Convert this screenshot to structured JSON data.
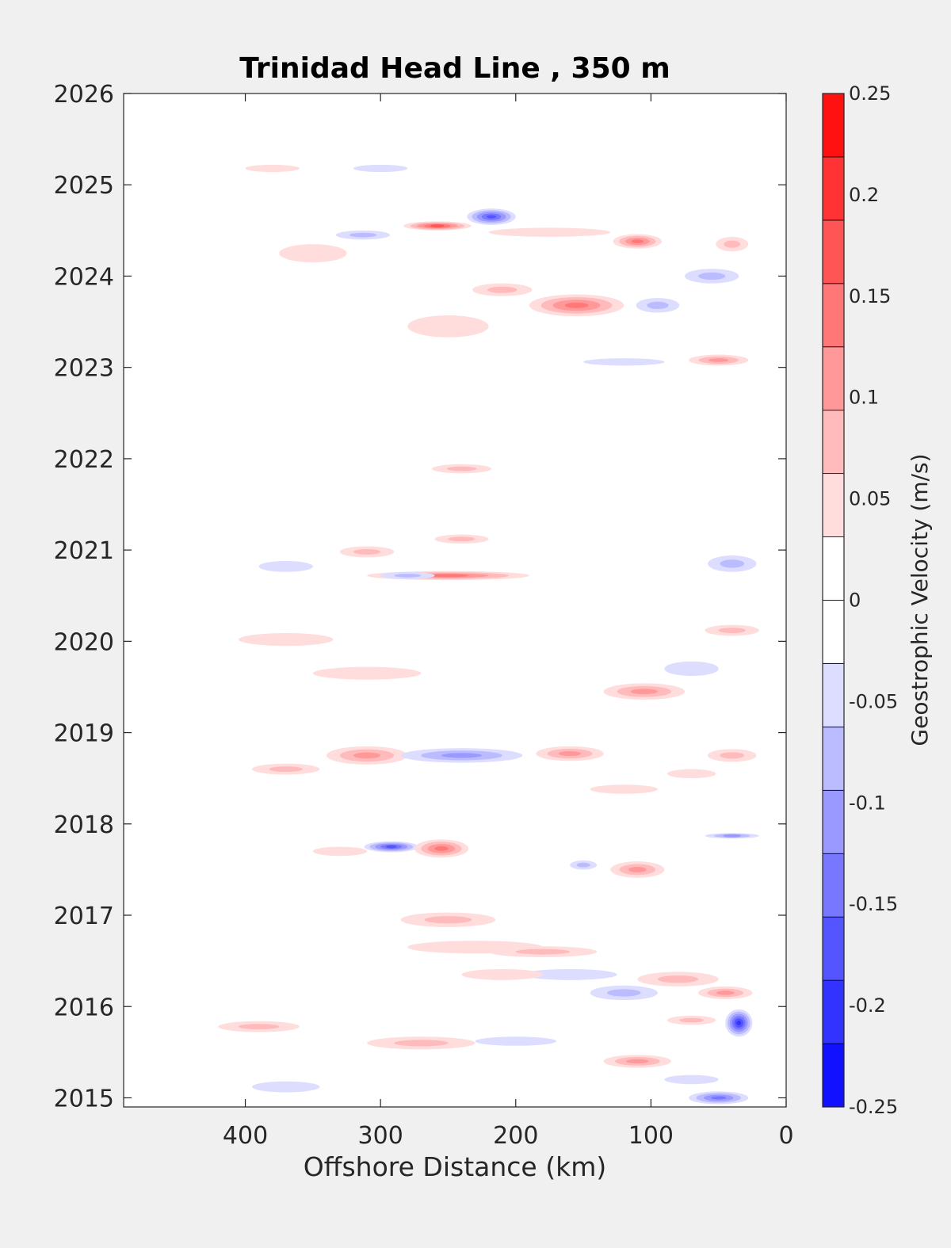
{
  "chart_data": {
    "type": "heatmap",
    "title": "Trinidad Head Line , 350 m",
    "xlabel": "Offshore Distance (km)",
    "ylabel": "",
    "x_reversed": true,
    "xlim": [
      490,
      0
    ],
    "ylim": [
      2014.9,
      2026
    ],
    "xticks": [
      400,
      300,
      200,
      100,
      0
    ],
    "yticks": [
      2015,
      2016,
      2017,
      2018,
      2019,
      2020,
      2021,
      2022,
      2023,
      2024,
      2025,
      2026
    ],
    "grid": false,
    "colorbar": {
      "label": "Geostrophic Velocity (m/s)",
      "range": [
        -0.25,
        0.25
      ],
      "ticks": [
        0.25,
        0.2,
        0.15,
        0.1,
        0.05,
        0,
        -0.05,
        -0.1,
        -0.15,
        -0.2,
        -0.25
      ],
      "tick_labels": [
        "0.25",
        "0.2",
        "0.15",
        "0.1",
        "0.05",
        "0",
        "-0.05",
        "-0.1",
        "-0.15",
        "-0.2",
        "-0.25"
      ],
      "levels": 16,
      "colors": {
        "0.25": "#ff0000",
        "0.219": "#ff2020",
        "0.188": "#ff4040",
        "0.156": "#ff6060",
        "0.125": "#ff8080",
        "0.094": "#ff9f9f",
        "0.063": "#ffbfbf",
        "0.031": "#ffdfdf",
        "0.0": "#ffffff",
        "-0.031": "#dfdfff",
        "-0.063": "#bfbfff",
        "-0.094": "#9f9fff",
        "-0.125": "#8080ff",
        "-0.156": "#6060ff",
        "-0.188": "#4040ff",
        "-0.219": "#2020ff",
        "-0.25": "#0000ff"
      }
    },
    "features": [
      {
        "x": 258,
        "y": 2024.55,
        "rx": 25,
        "ry": 0.05,
        "v": 0.18
      },
      {
        "x": 218,
        "y": 2024.65,
        "rx": 18,
        "ry": 0.09,
        "v": -0.16
      },
      {
        "x": 313,
        "y": 2024.45,
        "rx": 20,
        "ry": 0.05,
        "v": -0.09
      },
      {
        "x": 175,
        "y": 2024.48,
        "rx": 45,
        "ry": 0.05,
        "v": 0.06
      },
      {
        "x": 110,
        "y": 2024.38,
        "rx": 18,
        "ry": 0.08,
        "v": 0.13
      },
      {
        "x": 40,
        "y": 2024.35,
        "rx": 12,
        "ry": 0.08,
        "v": 0.08
      },
      {
        "x": 55,
        "y": 2024.0,
        "rx": 20,
        "ry": 0.08,
        "v": -0.08
      },
      {
        "x": 155,
        "y": 2023.68,
        "rx": 35,
        "ry": 0.12,
        "v": 0.14
      },
      {
        "x": 210,
        "y": 2023.85,
        "rx": 22,
        "ry": 0.07,
        "v": 0.07
      },
      {
        "x": 95,
        "y": 2023.68,
        "rx": 16,
        "ry": 0.08,
        "v": -0.07
      },
      {
        "x": 250,
        "y": 2023.45,
        "rx": 30,
        "ry": 0.12,
        "v": 0.06
      },
      {
        "x": 50,
        "y": 2023.08,
        "rx": 22,
        "ry": 0.06,
        "v": 0.1
      },
      {
        "x": 120,
        "y": 2023.06,
        "rx": 30,
        "ry": 0.04,
        "v": -0.06
      },
      {
        "x": 350,
        "y": 2024.25,
        "rx": 25,
        "ry": 0.1,
        "v": 0.05
      },
      {
        "x": 380,
        "y": 2025.18,
        "rx": 20,
        "ry": 0.04,
        "v": 0.05
      },
      {
        "x": 300,
        "y": 2025.18,
        "rx": 20,
        "ry": 0.04,
        "v": -0.05
      },
      {
        "x": 240,
        "y": 2021.89,
        "rx": 22,
        "ry": 0.05,
        "v": 0.08
      },
      {
        "x": 250,
        "y": 2020.72,
        "rx": 60,
        "ry": 0.05,
        "v": 0.13
      },
      {
        "x": 240,
        "y": 2021.12,
        "rx": 20,
        "ry": 0.05,
        "v": 0.09
      },
      {
        "x": 310,
        "y": 2020.98,
        "rx": 20,
        "ry": 0.06,
        "v": 0.08
      },
      {
        "x": 280,
        "y": 2020.72,
        "rx": 20,
        "ry": 0.04,
        "v": -0.08
      },
      {
        "x": 40,
        "y": 2020.85,
        "rx": 18,
        "ry": 0.09,
        "v": -0.07
      },
      {
        "x": 370,
        "y": 2020.82,
        "rx": 20,
        "ry": 0.06,
        "v": -0.05
      },
      {
        "x": 370,
        "y": 2020.02,
        "rx": 35,
        "ry": 0.07,
        "v": 0.06
      },
      {
        "x": 310,
        "y": 2019.65,
        "rx": 40,
        "ry": 0.07,
        "v": 0.06
      },
      {
        "x": 40,
        "y": 2020.12,
        "rx": 20,
        "ry": 0.06,
        "v": 0.07
      },
      {
        "x": 70,
        "y": 2019.7,
        "rx": 20,
        "ry": 0.08,
        "v": -0.05
      },
      {
        "x": 105,
        "y": 2019.45,
        "rx": 30,
        "ry": 0.09,
        "v": 0.11
      },
      {
        "x": 310,
        "y": 2018.75,
        "rx": 30,
        "ry": 0.1,
        "v": 0.1
      },
      {
        "x": 370,
        "y": 2018.6,
        "rx": 25,
        "ry": 0.06,
        "v": 0.09
      },
      {
        "x": 240,
        "y": 2018.75,
        "rx": 45,
        "ry": 0.08,
        "v": -0.1
      },
      {
        "x": 160,
        "y": 2018.77,
        "rx": 25,
        "ry": 0.08,
        "v": 0.1
      },
      {
        "x": 40,
        "y": 2018.75,
        "rx": 18,
        "ry": 0.07,
        "v": 0.08
      },
      {
        "x": 70,
        "y": 2018.55,
        "rx": 18,
        "ry": 0.05,
        "v": 0.06
      },
      {
        "x": 120,
        "y": 2018.38,
        "rx": 25,
        "ry": 0.05,
        "v": 0.06
      },
      {
        "x": 292,
        "y": 2017.75,
        "rx": 20,
        "ry": 0.06,
        "v": -0.18
      },
      {
        "x": 255,
        "y": 2017.73,
        "rx": 20,
        "ry": 0.1,
        "v": 0.14
      },
      {
        "x": 330,
        "y": 2017.7,
        "rx": 20,
        "ry": 0.05,
        "v": 0.06
      },
      {
        "x": 40,
        "y": 2017.87,
        "rx": 20,
        "ry": 0.03,
        "v": -0.1
      },
      {
        "x": 110,
        "y": 2017.5,
        "rx": 20,
        "ry": 0.09,
        "v": 0.12
      },
      {
        "x": 150,
        "y": 2017.55,
        "rx": 10,
        "ry": 0.05,
        "v": -0.09
      },
      {
        "x": 250,
        "y": 2016.95,
        "rx": 35,
        "ry": 0.08,
        "v": 0.08
      },
      {
        "x": 230,
        "y": 2016.65,
        "rx": 50,
        "ry": 0.07,
        "v": 0.06
      },
      {
        "x": 180,
        "y": 2016.6,
        "rx": 40,
        "ry": 0.06,
        "v": 0.07
      },
      {
        "x": 160,
        "y": 2016.35,
        "rx": 35,
        "ry": 0.06,
        "v": -0.06
      },
      {
        "x": 210,
        "y": 2016.35,
        "rx": 30,
        "ry": 0.06,
        "v": 0.05
      },
      {
        "x": 80,
        "y": 2016.3,
        "rx": 30,
        "ry": 0.08,
        "v": 0.09
      },
      {
        "x": 45,
        "y": 2016.15,
        "rx": 20,
        "ry": 0.07,
        "v": 0.1
      },
      {
        "x": 120,
        "y": 2016.15,
        "rx": 25,
        "ry": 0.08,
        "v": -0.09
      },
      {
        "x": 35,
        "y": 2015.82,
        "rx": 10,
        "ry": 0.15,
        "v": -0.2
      },
      {
        "x": 70,
        "y": 2015.85,
        "rx": 18,
        "ry": 0.05,
        "v": 0.09
      },
      {
        "x": 390,
        "y": 2015.78,
        "rx": 30,
        "ry": 0.06,
        "v": 0.08
      },
      {
        "x": 270,
        "y": 2015.6,
        "rx": 40,
        "ry": 0.07,
        "v": 0.09
      },
      {
        "x": 200,
        "y": 2015.62,
        "rx": 30,
        "ry": 0.05,
        "v": -0.05
      },
      {
        "x": 110,
        "y": 2015.4,
        "rx": 25,
        "ry": 0.07,
        "v": 0.11
      },
      {
        "x": 50,
        "y": 2015.0,
        "rx": 22,
        "ry": 0.07,
        "v": -0.13
      },
      {
        "x": 70,
        "y": 2015.2,
        "rx": 20,
        "ry": 0.05,
        "v": -0.06
      },
      {
        "x": 370,
        "y": 2015.12,
        "rx": 25,
        "ry": 0.06,
        "v": -0.05
      }
    ]
  }
}
